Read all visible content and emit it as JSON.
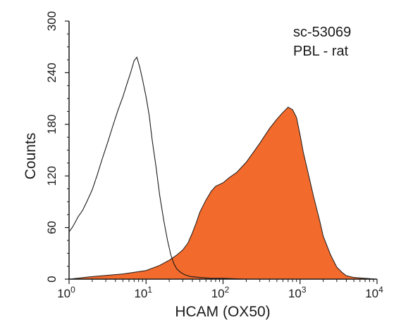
{
  "chart_data": {
    "type": "area",
    "title": "",
    "xlabel": "HCAM (OX50)",
    "ylabel": "Counts",
    "x_scale": "log",
    "xlim": [
      1,
      10000
    ],
    "ylim": [
      0,
      300
    ],
    "y_ticks": [
      "0",
      "60",
      "120",
      "180",
      "240",
      "300"
    ],
    "x_ticks": [
      {
        "base": "10",
        "exp": "0",
        "value": 1
      },
      {
        "base": "10",
        "exp": "1",
        "value": 10
      },
      {
        "base": "10",
        "exp": "2",
        "value": 100
      },
      {
        "base": "10",
        "exp": "3",
        "value": 1000
      },
      {
        "base": "10",
        "exp": "4",
        "value": 10000
      }
    ],
    "grid": false,
    "annotations": [
      "sc-53069",
      "PBL - rat"
    ],
    "colors": {
      "filled": "#f26a2c",
      "outline": "#1a1a1a",
      "axis": "#1a1a1a"
    },
    "series": [
      {
        "style": "outline",
        "x": [
          1.0,
          1.1,
          1.2,
          1.3,
          1.5,
          1.7,
          2.0,
          2.3,
          2.7,
          3.2,
          3.7,
          4.3,
          5.0,
          5.6,
          6.3,
          7.0,
          7.6,
          8.3,
          9.0,
          10.0,
          11.0,
          12.0,
          13.5,
          15.0,
          17.0,
          19.0,
          21.0,
          23.0,
          25.0,
          28.0,
          32.0,
          38.0,
          50.0,
          70.0,
          100.0,
          200.0,
          500.0,
          1000.0,
          3000.0,
          10000.0
        ],
        "y": [
          55,
          60,
          66,
          72,
          80,
          90,
          104,
          120,
          140,
          160,
          178,
          196,
          212,
          226,
          240,
          254,
          258,
          246,
          232,
          212,
          190,
          162,
          130,
          98,
          68,
          45,
          28,
          18,
          12,
          8,
          5,
          3,
          2,
          1,
          1,
          0,
          0,
          0,
          0,
          0
        ]
      },
      {
        "style": "filled",
        "x": [
          1.0,
          2.0,
          5.0,
          10.0,
          15.0,
          20.0,
          25.0,
          30.0,
          35.0,
          40.0,
          45.0,
          50.0,
          60.0,
          70.0,
          80.0,
          100.0,
          120.0,
          150.0,
          200.0,
          250.0,
          300.0,
          400.0,
          500.0,
          600.0,
          700.0,
          800.0,
          900.0,
          1000.0,
          1100.0,
          1300.0,
          1500.0,
          1800.0,
          2000.0,
          2500.0,
          3000.0,
          3500.0,
          4000.0,
          5000.0,
          7000.0,
          10000.0
        ],
        "y": [
          0,
          3,
          6,
          10,
          16,
          22,
          28,
          34,
          42,
          54,
          66,
          78,
          92,
          102,
          108,
          112,
          118,
          124,
          136,
          148,
          158,
          175,
          186,
          194,
          200,
          197,
          188,
          168,
          148,
          120,
          96,
          68,
          50,
          28,
          14,
          8,
          4,
          2,
          1,
          0
        ]
      }
    ]
  }
}
